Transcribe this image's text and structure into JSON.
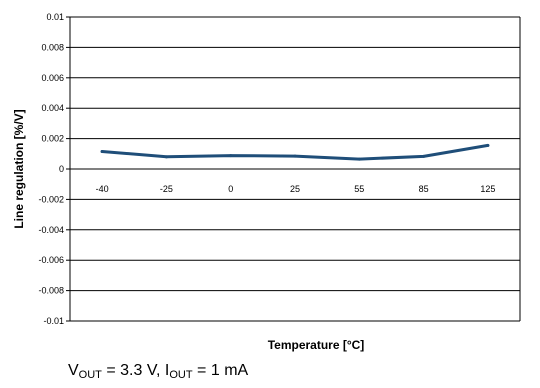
{
  "chart_data": {
    "type": "line",
    "categories": [
      "-40",
      "-25",
      "0",
      "25",
      "55",
      "85",
      "125"
    ],
    "series": [
      {
        "values": [
          0.00115,
          0.0008,
          0.00088,
          0.00085,
          0.00065,
          0.00083,
          0.00155
        ],
        "color": "#1f4e79"
      }
    ],
    "xlabel": "Temperature [°C]",
    "ylabel": "Line regulation [%/V]",
    "ylim": [
      -0.01,
      0.01
    ],
    "yticks": [
      "0.01",
      "0.008",
      "0.006",
      "0.004",
      "0.002",
      "0",
      "-0.002",
      "-0.004",
      "-0.006",
      "-0.008",
      "-0.01"
    ],
    "grid": true
  },
  "caption": {
    "v_main": "V",
    "v_sub": "OUT",
    "v_rest": " = 3.3 V, ",
    "i_main": "I",
    "i_sub": "OUT",
    "i_rest": " = 1 mA"
  }
}
